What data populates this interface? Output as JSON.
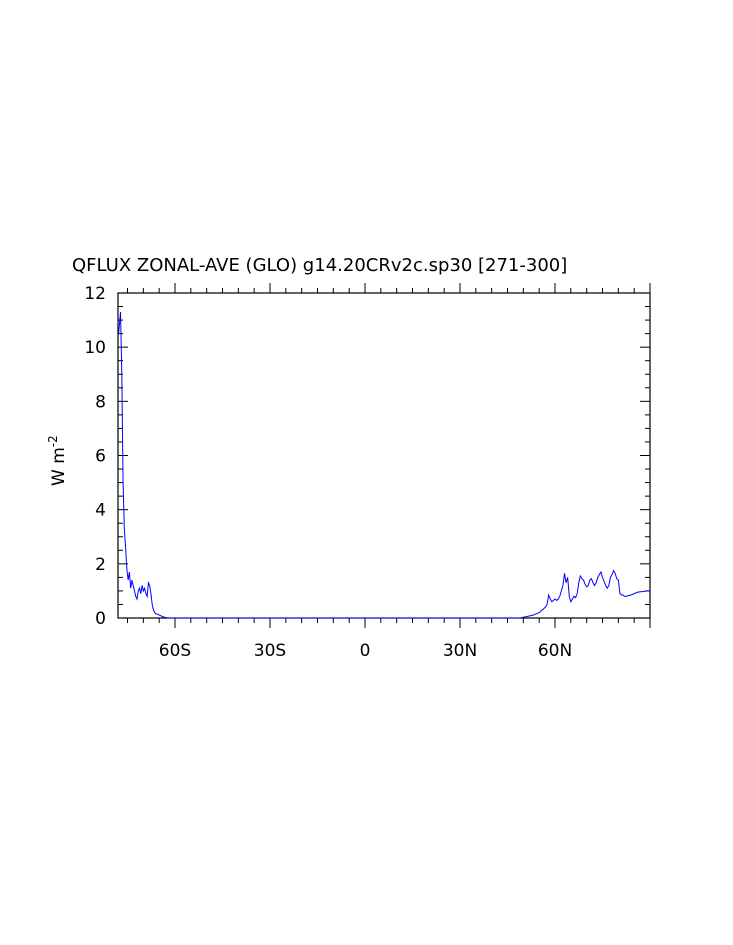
{
  "chart_data": {
    "type": "line",
    "title": "QFLUX ZONAL-AVE (GLO) g14.20CRv2c.sp30 [271-300]",
    "ylabel": "W m",
    "ylabel_superscript": "-2",
    "xlim": [
      -78,
      90
    ],
    "ylim": [
      0,
      12
    ],
    "x_ticks": [
      {
        "value": -60,
        "label": "60S"
      },
      {
        "value": -30,
        "label": "30S"
      },
      {
        "value": 0,
        "label": "0"
      },
      {
        "value": 30,
        "label": "30N"
      },
      {
        "value": 60,
        "label": "60N"
      }
    ],
    "y_ticks": [
      {
        "value": 0,
        "label": "0"
      },
      {
        "value": 2,
        "label": "2"
      },
      {
        "value": 4,
        "label": "4"
      },
      {
        "value": 6,
        "label": "6"
      },
      {
        "value": 8,
        "label": "8"
      },
      {
        "value": 10,
        "label": "10"
      },
      {
        "value": 12,
        "label": "12"
      }
    ],
    "line_color": "#0000ff",
    "series": [
      {
        "x": [
          -77.8,
          -77.2,
          -76.8,
          -76.4,
          -76.0,
          -75.6,
          -75.2,
          -74.8,
          -74.4,
          -74.0,
          -73.6,
          -73.2,
          -72.8,
          -72.4,
          -72.0,
          -71.6,
          -71.2,
          -70.8,
          -70.4,
          -70.0,
          -69.6,
          -69.2,
          -68.8,
          -68.4,
          -68.0,
          -67.6,
          -67.2,
          -66.8,
          -66.4,
          -66.0,
          -65.6,
          -65.2,
          -64.8,
          -64.4,
          -64.0,
          -63.0,
          -62.0,
          -61.0,
          -60.0,
          -59.0,
          -58.0,
          0.0,
          48.0,
          49.0,
          50.0,
          51.0,
          52.0,
          53.0,
          54.0,
          55.0,
          56.0,
          57.0,
          57.5,
          58.0,
          58.5,
          59.0,
          59.5,
          60.0,
          60.5,
          61.0,
          61.5,
          62.0,
          62.5,
          63.0,
          63.5,
          64.0,
          64.5,
          65.0,
          65.5,
          66.0,
          66.5,
          67.0,
          67.5,
          68.0,
          68.5,
          69.0,
          69.5,
          70.0,
          70.5,
          71.0,
          71.5,
          72.0,
          72.5,
          73.0,
          73.5,
          74.0,
          74.5,
          75.0,
          75.5,
          76.0,
          76.5,
          77.0,
          77.5,
          78.0,
          78.5,
          79.0,
          79.5,
          80.0,
          80.5,
          81.0,
          81.5,
          82.0,
          82.5,
          83.0,
          84.0,
          85.0,
          86.0,
          87.0,
          88.0,
          89.0,
          90.0
        ],
        "values": [
          10.5,
          11.3,
          9.0,
          5.0,
          3.3,
          2.6,
          1.8,
          1.4,
          1.7,
          1.1,
          1.4,
          1.2,
          1.0,
          0.8,
          0.7,
          1.0,
          1.1,
          0.9,
          1.2,
          1.0,
          1.1,
          0.9,
          0.8,
          1.3,
          1.2,
          0.9,
          0.5,
          0.3,
          0.2,
          0.15,
          0.15,
          0.12,
          0.1,
          0.08,
          0.05,
          0.02,
          0.0,
          0.0,
          0.0,
          0.0,
          0.0,
          0.0,
          0.0,
          0.0,
          0.03,
          0.05,
          0.08,
          0.1,
          0.15,
          0.2,
          0.3,
          0.4,
          0.5,
          0.85,
          0.7,
          0.6,
          0.65,
          0.7,
          0.65,
          0.7,
          0.8,
          1.0,
          1.2,
          1.65,
          1.3,
          1.5,
          0.8,
          0.6,
          0.7,
          0.8,
          0.75,
          0.9,
          1.3,
          1.55,
          1.45,
          1.4,
          1.25,
          1.15,
          1.2,
          1.4,
          1.45,
          1.3,
          1.2,
          1.3,
          1.5,
          1.6,
          1.7,
          1.5,
          1.35,
          1.2,
          1.1,
          1.2,
          1.5,
          1.6,
          1.75,
          1.65,
          1.45,
          1.4,
          0.9,
          0.85,
          0.85,
          0.8,
          0.8,
          0.82,
          0.85,
          0.9,
          0.95,
          0.97,
          0.98,
          1.0,
          1.0
        ]
      }
    ]
  }
}
